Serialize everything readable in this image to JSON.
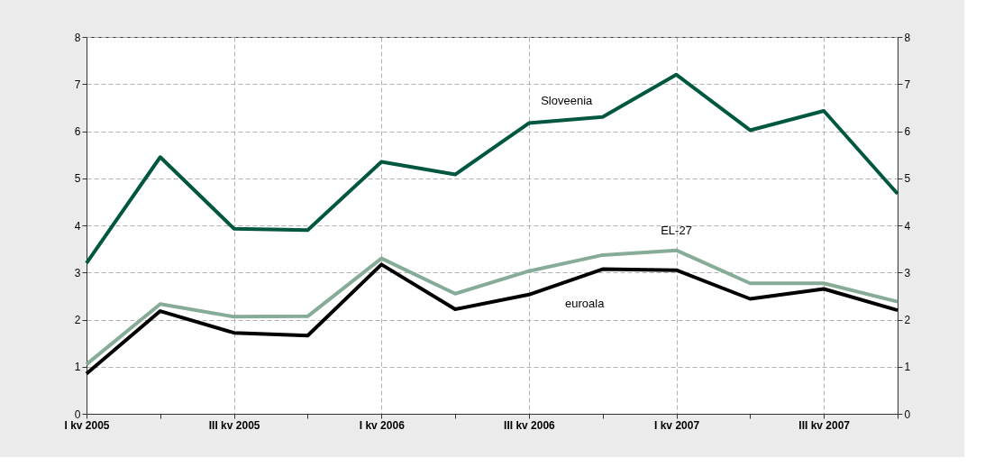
{
  "chart_data": {
    "type": "line",
    "categories": [
      "I kv 2005",
      null,
      "III kv 2005",
      null,
      "I kv 2006",
      null,
      "III kv 2006",
      null,
      "I kv 2007",
      null,
      "III kv 2007",
      null
    ],
    "series": [
      {
        "name": "Sloveenia",
        "color": "#00573f",
        "values": [
          3.2,
          5.45,
          3.93,
          3.9,
          5.35,
          5.08,
          6.17,
          6.3,
          7.2,
          6.02,
          6.43,
          4.67
        ]
      },
      {
        "name": "EL-27",
        "color": "#86ab97",
        "values": [
          1.05,
          2.33,
          2.06,
          2.07,
          3.3,
          2.55,
          3.03,
          3.37,
          3.47,
          2.77,
          2.77,
          2.38
        ]
      },
      {
        "name": "euroala",
        "color": "#000000",
        "values": [
          0.85,
          2.18,
          1.72,
          1.66,
          3.17,
          2.22,
          2.53,
          3.07,
          3.05,
          2.44,
          2.65,
          2.2
        ]
      }
    ],
    "ylim": [
      0,
      8
    ],
    "yticks": [
      0,
      1,
      2,
      3,
      4,
      5,
      6,
      7,
      8
    ],
    "y2lim": [
      0,
      8
    ],
    "y2ticks": [
      0,
      1,
      2,
      3,
      4,
      5,
      6,
      7,
      8
    ],
    "grid": true,
    "marker": "none",
    "line_style": "solid"
  }
}
